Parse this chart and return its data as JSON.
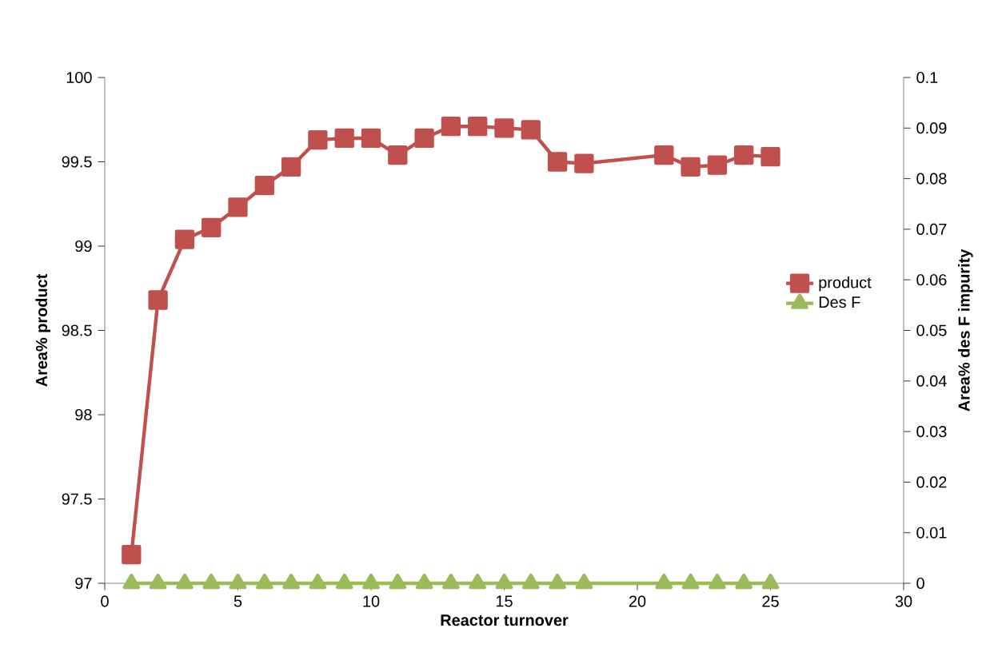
{
  "chart_data": {
    "type": "line",
    "xlabel": "Reactor turnover",
    "ylabel": "Area% product",
    "y2label": "Area% des F impurity",
    "x": [
      1,
      2,
      3,
      4,
      5,
      6,
      7,
      8,
      9,
      10,
      11,
      12,
      13,
      14,
      15,
      16,
      17,
      18,
      21,
      22,
      23,
      24,
      25
    ],
    "series": [
      {
        "name": "product",
        "color": "#c0504d",
        "marker": "square",
        "values": [
          97.17,
          98.68,
          99.04,
          99.11,
          99.23,
          99.36,
          99.47,
          99.63,
          99.64,
          99.64,
          99.54,
          99.64,
          99.71,
          99.71,
          99.7,
          99.69,
          99.5,
          99.49,
          99.54,
          99.47,
          99.48,
          99.54,
          99.53
        ]
      },
      {
        "name": "Des F",
        "color": "#9bbb59",
        "marker": "triangle",
        "axis": "y2",
        "values": [
          0,
          0,
          0,
          0,
          0,
          0,
          0,
          0,
          0,
          0,
          0,
          0,
          0,
          0,
          0,
          0,
          0,
          0,
          0,
          0,
          0,
          0,
          0
        ]
      }
    ],
    "xlim": [
      0,
      30
    ],
    "xticks": [
      0,
      5,
      10,
      15,
      20,
      25,
      30
    ],
    "ylim": [
      97,
      100
    ],
    "yticks": [
      97,
      97.5,
      98,
      98.5,
      99,
      99.5,
      100
    ],
    "y2lim": [
      0,
      0.1
    ],
    "y2ticks": [
      0,
      0.01,
      0.02,
      0.03,
      0.04,
      0.05,
      0.06,
      0.07,
      0.08,
      0.09,
      0.1
    ],
    "legend": "right",
    "line_style": "solid"
  }
}
